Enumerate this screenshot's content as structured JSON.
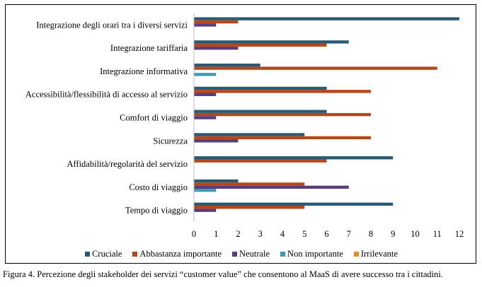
{
  "caption": "Figura 4. Percezione degli stakeholder dei servizi “customer value” che consentono al MaaS di avere successo tra i cittadini.",
  "chart_data": {
    "type": "bar",
    "orientation": "horizontal",
    "categories": [
      "Integrazione degli orari tra i diversi servizi",
      "Integrazione tariffaria",
      "Integrazione informativa",
      "Accessibilità/flessibilità di accesso al servizio",
      "Comfort di viaggio",
      "Sicurezza",
      "Affidabilità/regolarità del servizio",
      "Costo di viaggio",
      "Tempo di viaggio"
    ],
    "series": [
      {
        "name": "Cruciale",
        "color": "#2a5a73",
        "values": [
          12,
          7,
          3,
          6,
          6,
          5,
          9,
          2,
          9
        ]
      },
      {
        "name": "Abbastanza importante",
        "color": "#b5471c",
        "values": [
          2,
          6,
          11,
          8,
          8,
          8,
          6,
          5,
          5
        ]
      },
      {
        "name": "Neutrale",
        "color": "#5a3c7c",
        "values": [
          1,
          2,
          0,
          1,
          1,
          2,
          0,
          7,
          1
        ]
      },
      {
        "name": "Non importante",
        "color": "#3e9bb4",
        "values": [
          0,
          0,
          1,
          0,
          0,
          0,
          0,
          1,
          0
        ]
      },
      {
        "name": "Irrilevante",
        "color": "#e58a2e",
        "values": [
          0,
          0,
          0,
          0,
          0,
          0,
          0,
          0,
          0
        ]
      }
    ],
    "xlim": [
      0,
      12
    ],
    "xticks": [
      "0",
      "1",
      "2",
      "3",
      "4",
      "5",
      "6",
      "7",
      "8",
      "9",
      "10",
      "11",
      "12"
    ],
    "grid": false,
    "legend_position": "bottom"
  }
}
